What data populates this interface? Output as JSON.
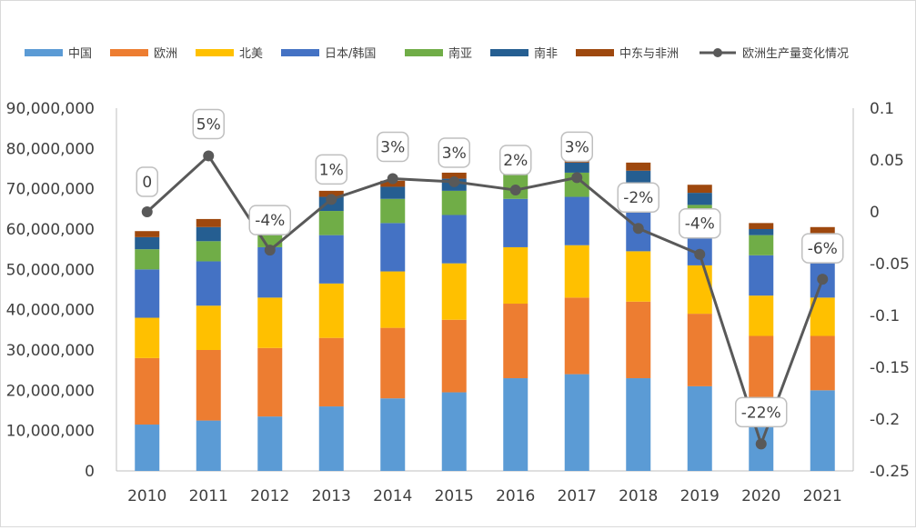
{
  "chart_data": {
    "type": "bar",
    "stacked": true,
    "categories": [
      "2010",
      "2011",
      "2012",
      "2013",
      "2014",
      "2015",
      "2016",
      "2017",
      "2018",
      "2019",
      "2020",
      "2021"
    ],
    "series": [
      {
        "name": "中国",
        "color": "#5b9bd5",
        "values": [
          11500000,
          12500000,
          13500000,
          16000000,
          18000000,
          19500000,
          23000000,
          24000000,
          23000000,
          21000000,
          14000000,
          20000000
        ]
      },
      {
        "name": "欧洲",
        "color": "#ed7d31",
        "values": [
          16500000,
          17500000,
          17000000,
          17000000,
          17500000,
          18000000,
          18500000,
          19000000,
          19000000,
          18000000,
          19500000,
          13500000
        ]
      },
      {
        "name": "北美",
        "color": "#ffc000",
        "values": [
          10000000,
          11000000,
          12500000,
          13500000,
          14000000,
          14000000,
          14000000,
          13000000,
          12500000,
          12000000,
          10000000,
          9500000
        ]
      },
      {
        "name": "日本/韩国",
        "color": "#4472c4",
        "values": [
          12000000,
          11000000,
          12500000,
          12000000,
          12000000,
          12000000,
          12000000,
          12000000,
          12000000,
          9000000,
          10000000,
          9000000
        ]
      },
      {
        "name": "南亚",
        "color": "#70ad47",
        "values": [
          5000000,
          5000000,
          3000000,
          6000000,
          6000000,
          6000000,
          6000000,
          6000000,
          5000000,
          6000000,
          5000000,
          5000000
        ]
      },
      {
        "name": "南非",
        "color": "#255e91",
        "values": [
          3000000,
          3500000,
          2500000,
          3500000,
          3000000,
          3000000,
          2500000,
          2500000,
          3000000,
          3000000,
          1500000,
          2000000
        ]
      },
      {
        "name": "中东与非洲",
        "color": "#9e480e",
        "values": [
          1500000,
          2000000,
          1500000,
          1500000,
          1500000,
          1500000,
          1500000,
          1500000,
          2000000,
          2000000,
          1500000,
          1500000
        ]
      }
    ],
    "line": {
      "name": "欧洲生产量变化情况",
      "color": "#595959",
      "values": [
        0.0,
        0.054,
        -0.037,
        0.012,
        0.032,
        0.029,
        0.021,
        0.033,
        -0.016,
        -0.041,
        -0.224,
        -0.065
      ],
      "labels": [
        "0",
        "5%",
        "-4%",
        "1%",
        "3%",
        "3%",
        "2%",
        "3%",
        "-2%",
        "-4%",
        "-22%",
        "-6%"
      ]
    },
    "y_left": {
      "min": 0,
      "max": 90000000,
      "step": 10000000,
      "tick_labels": [
        "0",
        "10,000,000",
        "20,000,000",
        "30,000,000",
        "40,000,000",
        "50,000,000",
        "60,000,000",
        "70,000,000",
        "80,000,000",
        "90,000,000"
      ]
    },
    "y_right": {
      "min": -0.25,
      "max": 0.1,
      "step": 0.05,
      "tick_labels": [
        "-0.25",
        "-0.2",
        "-0.15",
        "-0.1",
        "-0.05",
        "0",
        "0.05",
        "0.1"
      ]
    },
    "legend_position": "top",
    "grid": false
  }
}
